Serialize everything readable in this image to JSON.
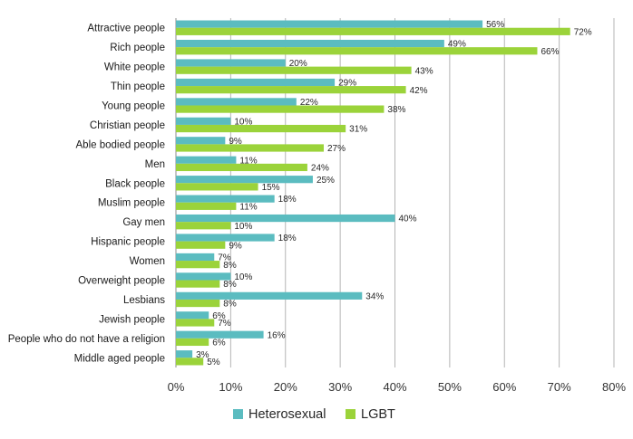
{
  "chart_data": {
    "type": "bar",
    "orientation": "horizontal",
    "categories": [
      "Attractive people",
      "Rich people",
      "White people",
      "Thin people",
      "Young people",
      "Christian people",
      "Able bodied people",
      "Men",
      "Black people",
      "Muslim people",
      "Gay men",
      "Hispanic people",
      "Women",
      "Overweight people",
      "Lesbians",
      "Jewish people",
      "People who do not have a religion",
      "Middle aged people"
    ],
    "series": [
      {
        "name": "Heterosexual",
        "color": "#5bbcc0",
        "values": [
          56,
          49,
          20,
          29,
          22,
          10,
          9,
          11,
          25,
          18,
          40,
          18,
          7,
          10,
          34,
          6,
          16,
          3
        ]
      },
      {
        "name": "LGBT",
        "color": "#9bd33a",
        "values": [
          72,
          66,
          43,
          42,
          38,
          31,
          27,
          24,
          15,
          11,
          10,
          9,
          8,
          8,
          8,
          7,
          6,
          5
        ]
      }
    ],
    "xticks": [
      "0%",
      "10%",
      "20%",
      "30%",
      "40%",
      "50%",
      "60%",
      "70%",
      "80%"
    ],
    "xlim": [
      0,
      80
    ],
    "value_suffix": "%",
    "grid": "vertical",
    "legend_position": "bottom"
  }
}
